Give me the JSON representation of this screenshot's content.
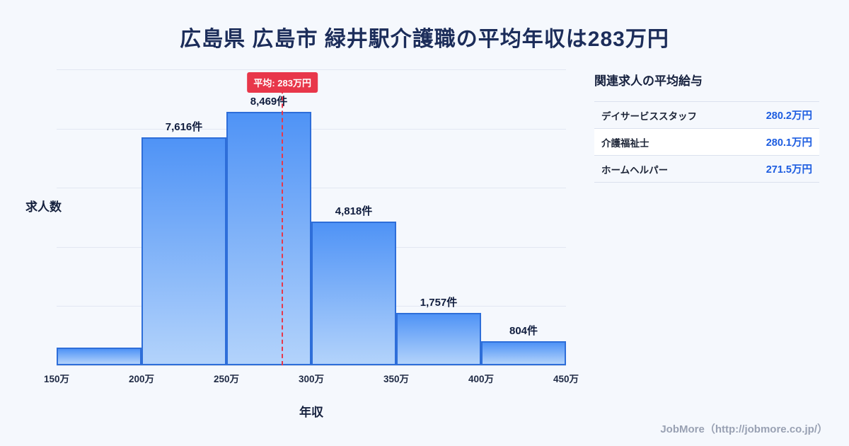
{
  "title": "広島県 広島市 緑井駅介護職の平均年収は283万円",
  "chart_data": {
    "type": "bar",
    "subtype": "histogram",
    "xlabel": "年収",
    "ylabel": "求人数",
    "x_ticks": [
      "150万",
      "200万",
      "250万",
      "300万",
      "350万",
      "400万",
      "450万"
    ],
    "x_range_man": [
      150,
      450
    ],
    "y_axis_max": 9900,
    "grid": true,
    "bins": [
      {
        "range": "150万-200万",
        "count": 600,
        "label": ""
      },
      {
        "range": "200万-250万",
        "count": 7616,
        "label": "7,616件"
      },
      {
        "range": "250万-300万",
        "count": 8469,
        "label": "8,469件"
      },
      {
        "range": "300万-350万",
        "count": 4818,
        "label": "4,818件"
      },
      {
        "range": "350万-400万",
        "count": 1757,
        "label": "1,757件"
      },
      {
        "range": "400万-450万",
        "count": 804,
        "label": "804件"
      }
    ],
    "average": {
      "value_man": 283,
      "label": "平均: 283万円"
    },
    "colors": {
      "bar_top": "#4f93f6",
      "bar_bottom": "#b3d3fb",
      "bar_border": "#2e6ed9",
      "average_line": "#e8374a"
    }
  },
  "side_panel": {
    "heading": "関連求人の平均給与",
    "rows": [
      {
        "name": "デイサービススタッフ",
        "value": "280.2万円"
      },
      {
        "name": "介護福祉士",
        "value": "280.1万円"
      },
      {
        "name": "ホームヘルパー",
        "value": "271.5万円"
      }
    ]
  },
  "footer": {
    "credit": "JobMore（http://jobmore.co.jp/）"
  }
}
